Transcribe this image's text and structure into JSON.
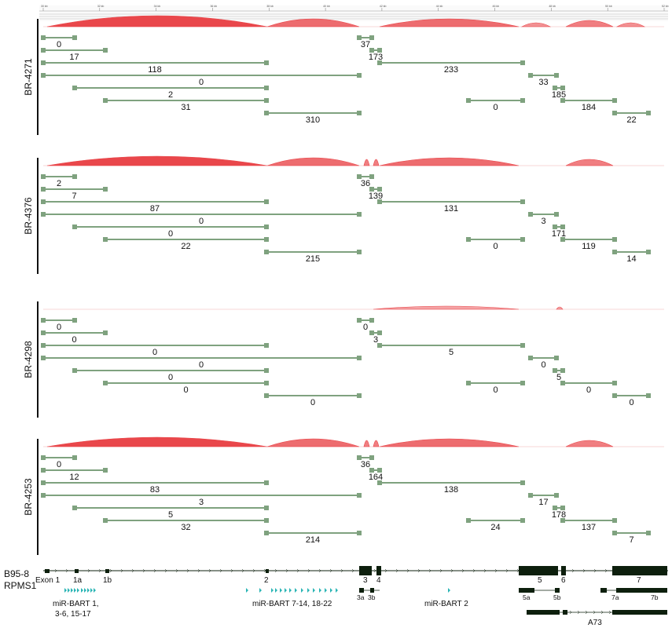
{
  "ruler": {
    "ticks": [
      "30 kb",
      "32 kb",
      "34 kb",
      "36 kb",
      "38 kb",
      "40 kb",
      "42 kb",
      "44 kb",
      "46 kb",
      "48 kb",
      "50 kb",
      "52 kb"
    ]
  },
  "colors": {
    "junction": "#7fa27f",
    "sashimi": "#e9474b",
    "gene": "#0d1f0d",
    "mirna": "#2ab5b5"
  },
  "junctions": [
    {
      "x1": 55,
      "x2": 95
    },
    {
      "x1": 55,
      "x2": 134
    },
    {
      "x1": 55,
      "x2": 339
    },
    {
      "x1": 55,
      "x2": 457
    },
    {
      "x1": 95,
      "x2": 339
    },
    {
      "x1": 134,
      "x2": 339
    },
    {
      "x1": 339,
      "x2": 457
    },
    {
      "x1": 457,
      "x2": 473
    },
    {
      "x1": 473,
      "x2": 483
    },
    {
      "x1": 483,
      "x2": 665
    },
    {
      "x1": 596,
      "x2": 665
    },
    {
      "x1": 675,
      "x2": 708
    },
    {
      "x1": 706,
      "x2": 716
    },
    {
      "x1": 716,
      "x2": 782
    },
    {
      "x1": 782,
      "x2": 825
    }
  ],
  "panels": [
    {
      "name": "BR-4271",
      "counts": [
        "0",
        "17",
        "118",
        "0",
        "2",
        "31",
        "310",
        "37",
        "173",
        "233",
        "0",
        "33",
        "185",
        "184",
        "22"
      ]
    },
    {
      "name": "BR-4376",
      "counts": [
        "2",
        "7",
        "87",
        "0",
        "0",
        "22",
        "215",
        "36",
        "139",
        "131",
        "0",
        "3",
        "171",
        "119",
        "14"
      ]
    },
    {
      "name": "BR-4298",
      "counts": [
        "0",
        "0",
        "0",
        "0",
        "0",
        "0",
        "0",
        "0",
        "3",
        "5",
        "0",
        "0",
        "5",
        "0",
        "0"
      ]
    },
    {
      "name": "BR-4253",
      "counts": [
        "0",
        "12",
        "83",
        "3",
        "5",
        "32",
        "214",
        "36",
        "164",
        "138",
        "24",
        "17",
        "178",
        "137",
        "7"
      ]
    }
  ],
  "gene": {
    "track_label_1": "B95-8",
    "track_label_2": "RPMS1",
    "exons": [
      "Exon 1",
      "1a",
      "1b",
      "2",
      "3",
      "4",
      "5",
      "6",
      "7"
    ],
    "sub_exons": [
      "3a",
      "3b",
      "5a",
      "5b",
      "7a",
      "7b"
    ],
    "mirna_1_line1": "miR-BART 1,",
    "mirna_1_line2": "3-6, 15-17",
    "mirna_2": "miR-BART 7-14, 18-22",
    "mirna_3": "miR-BART 2",
    "a73": "A73"
  }
}
